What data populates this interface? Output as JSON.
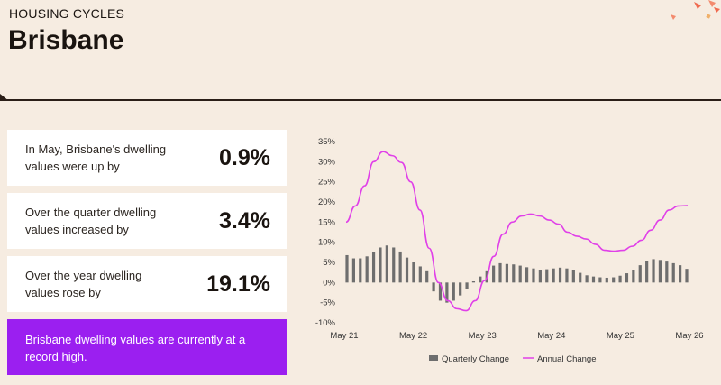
{
  "header": {
    "section_label": "HOUSING CYCLES",
    "city": "Brisbane"
  },
  "stats": [
    {
      "text": "In May, Brisbane's dwelling values were up by",
      "value": "0.9%"
    },
    {
      "text": "Over the quarter dwelling values increased by",
      "value": "3.4%"
    },
    {
      "text": "Over the year dwelling values rose by",
      "value": "19.1%"
    }
  ],
  "callout": {
    "text": "Brisbane dwelling values are currently at a record high."
  },
  "colors": {
    "accent_purple": "#9b1ff0",
    "annual_line": "#e040e8",
    "quarterly_bar": "#6e6e6e"
  },
  "chart_data": {
    "type": "bar",
    "title": "",
    "ylabel": "",
    "xlabel": "",
    "ylim": [
      -10,
      35
    ],
    "y_ticks": [
      "35%",
      "30%",
      "25%",
      "20%",
      "15%",
      "10%",
      "5%",
      "0%",
      "-5%",
      "-10%"
    ],
    "x_ticks": [
      "May 21",
      "May 22",
      "May 23",
      "May 24",
      "May 25",
      "May 26"
    ],
    "legend_placement": "bottom-center",
    "series": [
      {
        "name": "Quarterly Change",
        "type": "bar",
        "values": [
          6.8,
          6.0,
          6.0,
          6.5,
          7.5,
          8.7,
          9.2,
          8.7,
          7.7,
          6.2,
          5.0,
          4.0,
          2.8,
          -2.2,
          -4.5,
          -5.0,
          -4.5,
          -3.2,
          -1.5,
          0.3,
          1.5,
          2.8,
          4.2,
          4.8,
          4.6,
          4.5,
          4.2,
          3.8,
          3.5,
          3.0,
          3.3,
          3.5,
          3.7,
          3.5,
          3.0,
          2.4,
          1.8,
          1.5,
          1.3,
          1.2,
          1.3,
          1.7,
          2.3,
          3.2,
          4.3,
          5.3,
          5.8,
          5.6,
          5.2,
          4.8,
          4.3,
          3.4
        ]
      },
      {
        "name": "Annual Change",
        "type": "line",
        "values": [
          15.0,
          19.0,
          24.0,
          30.0,
          32.5,
          31.5,
          29.8,
          25.0,
          18.0,
          8.5,
          0.0,
          -4.5,
          -6.5,
          -7.0,
          -4.5,
          0.5,
          6.5,
          12.0,
          15.0,
          16.5,
          17.0,
          16.5,
          15.5,
          14.5,
          12.5,
          11.5,
          10.8,
          9.5,
          8.0,
          7.8,
          8.0,
          9.0,
          10.5,
          13.0,
          15.5,
          18.0,
          19.0,
          19.1
        ]
      }
    ]
  }
}
